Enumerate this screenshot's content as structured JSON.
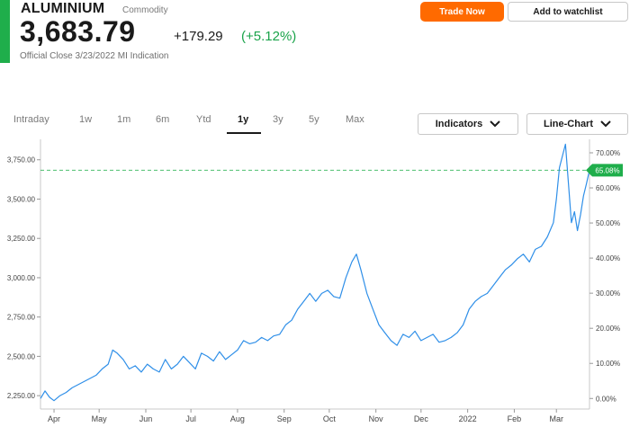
{
  "header": {
    "name": "ALUMINIUM",
    "type": "Commodity",
    "price": "3,683.79",
    "change": "+179.29",
    "change_pct": "(+5.12%)",
    "subline": "Official Close 3/23/2022   MI Indication",
    "trade_label": "Trade Now",
    "watch_label": "Add to watchlist"
  },
  "tabs": [
    {
      "label": "Intraday",
      "active": false
    },
    {
      "label": "1w",
      "active": false
    },
    {
      "label": "1m",
      "active": false
    },
    {
      "label": "6m",
      "active": false
    },
    {
      "label": "Ytd",
      "active": false
    },
    {
      "label": "1y",
      "active": true
    },
    {
      "label": "3y",
      "active": false
    },
    {
      "label": "5y",
      "active": false
    },
    {
      "label": "Max",
      "active": false
    }
  ],
  "controls": {
    "indicators_label": "Indicators",
    "chart_type_label": "Line-Chart"
  },
  "colors": {
    "accent": "#1fae4b",
    "line": "#2f8fe8",
    "trade": "#ff6a00",
    "positive": "#1aa34a"
  },
  "chart_data": {
    "type": "line",
    "x_type": "date",
    "x_range": [
      "2021-03-23",
      "2022-03-23"
    ],
    "y_left_ticks": [
      "2,250.00",
      "2,500.00",
      "2,750.00",
      "3,000.00",
      "3,250.00",
      "3,500.00",
      "3,750.00"
    ],
    "y_left_values": [
      2250,
      2500,
      2750,
      3000,
      3250,
      3500,
      3750
    ],
    "y_right_ticks": [
      "0.00%",
      "10.00%",
      "20.00%",
      "30.00%",
      "40.00%",
      "50.00%",
      "60.00%",
      "70.00%"
    ],
    "y_right_values": [
      0,
      10,
      20,
      30,
      40,
      50,
      60,
      70
    ],
    "ylim": [
      2165,
      3880
    ],
    "x_ticks": [
      {
        "label": "Apr",
        "date": "2021-04-01"
      },
      {
        "label": "May",
        "date": "2021-05-01"
      },
      {
        "label": "Jun",
        "date": "2021-06-01"
      },
      {
        "label": "Jul",
        "date": "2021-07-01"
      },
      {
        "label": "Aug",
        "date": "2021-08-01"
      },
      {
        "label": "Sep",
        "date": "2021-09-01"
      },
      {
        "label": "Oct",
        "date": "2021-10-01"
      },
      {
        "label": "Nov",
        "date": "2021-11-01"
      },
      {
        "label": "Dec",
        "date": "2021-12-01"
      },
      {
        "label": "2022",
        "date": "2022-01-01"
      },
      {
        "label": "Feb",
        "date": "2022-02-01"
      },
      {
        "label": "Mar",
        "date": "2022-03-01"
      }
    ],
    "reference_value": 3683.79,
    "reference_label": "65.08%",
    "points": [
      [
        "2021-03-23",
        2232
      ],
      [
        "2021-03-26",
        2280
      ],
      [
        "2021-03-29",
        2240
      ],
      [
        "2021-04-01",
        2218
      ],
      [
        "2021-04-05",
        2250
      ],
      [
        "2021-04-09",
        2270
      ],
      [
        "2021-04-13",
        2300
      ],
      [
        "2021-04-17",
        2320
      ],
      [
        "2021-04-21",
        2340
      ],
      [
        "2021-04-25",
        2360
      ],
      [
        "2021-04-29",
        2380
      ],
      [
        "2021-05-03",
        2420
      ],
      [
        "2021-05-07",
        2450
      ],
      [
        "2021-05-10",
        2540
      ],
      [
        "2021-05-13",
        2520
      ],
      [
        "2021-05-17",
        2480
      ],
      [
        "2021-05-21",
        2420
      ],
      [
        "2021-05-25",
        2440
      ],
      [
        "2021-05-29",
        2400
      ],
      [
        "2021-06-02",
        2450
      ],
      [
        "2021-06-06",
        2420
      ],
      [
        "2021-06-10",
        2400
      ],
      [
        "2021-06-14",
        2480
      ],
      [
        "2021-06-18",
        2420
      ],
      [
        "2021-06-22",
        2450
      ],
      [
        "2021-06-26",
        2500
      ],
      [
        "2021-06-30",
        2460
      ],
      [
        "2021-07-04",
        2420
      ],
      [
        "2021-07-08",
        2520
      ],
      [
        "2021-07-12",
        2500
      ],
      [
        "2021-07-16",
        2470
      ],
      [
        "2021-07-20",
        2530
      ],
      [
        "2021-07-24",
        2480
      ],
      [
        "2021-07-28",
        2510
      ],
      [
        "2021-08-01",
        2540
      ],
      [
        "2021-08-05",
        2600
      ],
      [
        "2021-08-09",
        2580
      ],
      [
        "2021-08-13",
        2590
      ],
      [
        "2021-08-17",
        2620
      ],
      [
        "2021-08-21",
        2600
      ],
      [
        "2021-08-25",
        2630
      ],
      [
        "2021-08-29",
        2640
      ],
      [
        "2021-09-02",
        2700
      ],
      [
        "2021-09-06",
        2730
      ],
      [
        "2021-09-10",
        2800
      ],
      [
        "2021-09-14",
        2850
      ],
      [
        "2021-09-18",
        2900
      ],
      [
        "2021-09-22",
        2850
      ],
      [
        "2021-09-26",
        2900
      ],
      [
        "2021-09-30",
        2920
      ],
      [
        "2021-10-04",
        2880
      ],
      [
        "2021-10-08",
        2870
      ],
      [
        "2021-10-12",
        3000
      ],
      [
        "2021-10-16",
        3100
      ],
      [
        "2021-10-19",
        3150
      ],
      [
        "2021-10-22",
        3050
      ],
      [
        "2021-10-26",
        2900
      ],
      [
        "2021-10-30",
        2800
      ],
      [
        "2021-11-03",
        2700
      ],
      [
        "2021-11-07",
        2650
      ],
      [
        "2021-11-11",
        2600
      ],
      [
        "2021-11-15",
        2570
      ],
      [
        "2021-11-19",
        2640
      ],
      [
        "2021-11-23",
        2620
      ],
      [
        "2021-11-27",
        2660
      ],
      [
        "2021-12-01",
        2600
      ],
      [
        "2021-12-05",
        2620
      ],
      [
        "2021-12-09",
        2640
      ],
      [
        "2021-12-13",
        2590
      ],
      [
        "2021-12-17",
        2600
      ],
      [
        "2021-12-21",
        2620
      ],
      [
        "2021-12-25",
        2650
      ],
      [
        "2021-12-29",
        2700
      ],
      [
        "2022-01-02",
        2800
      ],
      [
        "2022-01-06",
        2850
      ],
      [
        "2022-01-10",
        2880
      ],
      [
        "2022-01-14",
        2900
      ],
      [
        "2022-01-18",
        2950
      ],
      [
        "2022-01-22",
        3000
      ],
      [
        "2022-01-26",
        3050
      ],
      [
        "2022-01-30",
        3080
      ],
      [
        "2022-02-03",
        3120
      ],
      [
        "2022-02-07",
        3150
      ],
      [
        "2022-02-11",
        3100
      ],
      [
        "2022-02-15",
        3180
      ],
      [
        "2022-02-19",
        3200
      ],
      [
        "2022-02-23",
        3260
      ],
      [
        "2022-02-27",
        3350
      ],
      [
        "2022-03-01",
        3500
      ],
      [
        "2022-03-03",
        3700
      ],
      [
        "2022-03-07",
        3849
      ],
      [
        "2022-03-09",
        3600
      ],
      [
        "2022-03-11",
        3350
      ],
      [
        "2022-03-13",
        3420
      ],
      [
        "2022-03-15",
        3300
      ],
      [
        "2022-03-17",
        3400
      ],
      [
        "2022-03-19",
        3520
      ],
      [
        "2022-03-21",
        3600
      ],
      [
        "2022-03-23",
        3683.79
      ]
    ]
  }
}
